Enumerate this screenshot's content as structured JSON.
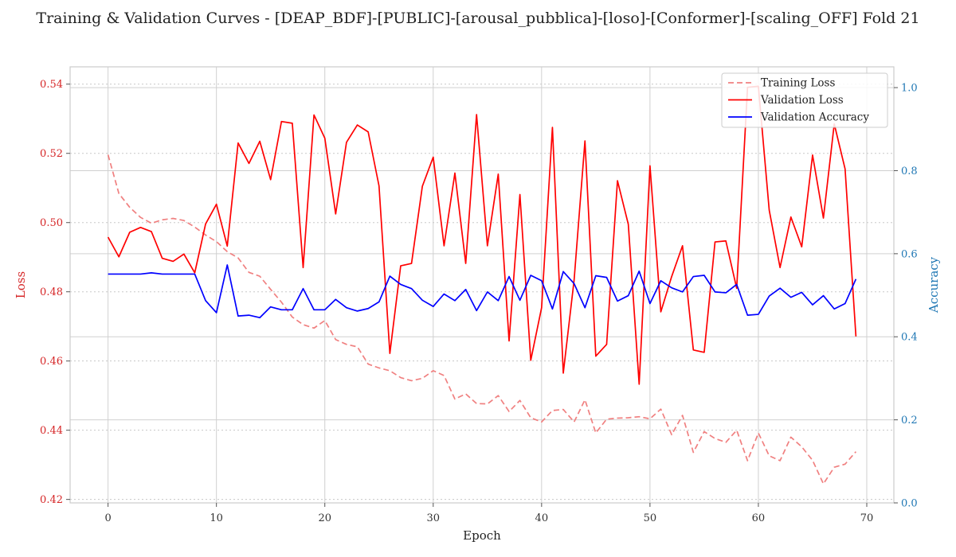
{
  "chart_data": {
    "type": "line",
    "title": "Training & Validation Curves - [DEAP_BDF]-[PUBLIC]-[arousal_pubblica]-[loso]-[Conformer]-[scaling_OFF] Fold 21",
    "xlabel": "Epoch",
    "ylabel_left": "Loss",
    "ylabel_right": "Accuracy",
    "xlim": [
      -3.5,
      72.5
    ],
    "ylim_left": [
      0.419,
      0.545
    ],
    "ylim_right": [
      0.0,
      1.05
    ],
    "xticks": [
      0,
      10,
      20,
      30,
      40,
      50,
      60,
      70
    ],
    "yticks_left": [
      0.42,
      0.44,
      0.46,
      0.48,
      0.5,
      0.52,
      0.54
    ],
    "yticks_right": [
      0.0,
      0.2,
      0.4,
      0.6,
      0.8,
      1.0
    ],
    "xtick_labels": [
      "0",
      "10",
      "20",
      "30",
      "40",
      "50",
      "60",
      "70"
    ],
    "ytick_labels_left": [
      "0.42",
      "0.44",
      "0.46",
      "0.48",
      "0.50",
      "0.52",
      "0.54"
    ],
    "ytick_labels_right": [
      "0.0",
      "0.2",
      "0.4",
      "0.6",
      "0.8",
      "1.0"
    ],
    "grid": true,
    "legend_position": "top-right",
    "colors": {
      "training_loss": "#f08080",
      "validation_loss": "#ff0000",
      "validation_accuracy": "#0000ff",
      "left_axis": "#d62728",
      "right_axis": "#1f77b4"
    },
    "x": [
      0,
      1,
      2,
      3,
      4,
      5,
      6,
      7,
      8,
      9,
      10,
      11,
      12,
      13,
      14,
      15,
      16,
      17,
      18,
      19,
      20,
      21,
      22,
      23,
      24,
      25,
      26,
      27,
      28,
      29,
      30,
      31,
      32,
      33,
      34,
      35,
      36,
      37,
      38,
      39,
      40,
      41,
      42,
      43,
      44,
      45,
      46,
      47,
      48,
      49,
      50,
      51,
      52,
      53,
      54,
      55,
      56,
      57,
      58,
      59,
      60,
      61,
      62,
      63,
      64,
      65,
      66,
      67,
      68,
      69
    ],
    "series": [
      {
        "name": "Training Loss",
        "axis": "left",
        "style": "dashed",
        "values": [
          0.5196,
          0.5084,
          0.5044,
          0.5015,
          0.4998,
          0.5008,
          0.5012,
          0.5006,
          0.4987,
          0.4964,
          0.4945,
          0.4916,
          0.4898,
          0.4856,
          0.4845,
          0.4807,
          0.477,
          0.4727,
          0.4705,
          0.4695,
          0.4717,
          0.4662,
          0.4648,
          0.4641,
          0.4591,
          0.458,
          0.4572,
          0.4552,
          0.4543,
          0.455,
          0.4572,
          0.4558,
          0.449,
          0.4505,
          0.4477,
          0.4476,
          0.45,
          0.4454,
          0.4486,
          0.4436,
          0.4424,
          0.4457,
          0.446,
          0.4424,
          0.4488,
          0.4392,
          0.4432,
          0.4435,
          0.4436,
          0.4439,
          0.4433,
          0.4461,
          0.4387,
          0.4443,
          0.4336,
          0.4396,
          0.4376,
          0.4365,
          0.44,
          0.4312,
          0.4392,
          0.4326,
          0.4312,
          0.438,
          0.4352,
          0.4313,
          0.4245,
          0.4293,
          0.4302,
          0.4338
        ]
      },
      {
        "name": "Validation Loss",
        "axis": "left",
        "style": "solid",
        "values": [
          0.4958,
          0.4901,
          0.4972,
          0.4986,
          0.4974,
          0.4897,
          0.4888,
          0.4909,
          0.4855,
          0.4996,
          0.5053,
          0.4932,
          0.523,
          0.5171,
          0.5235,
          0.5124,
          0.5292,
          0.5287,
          0.487,
          0.5311,
          0.5244,
          0.5025,
          0.5232,
          0.5282,
          0.5262,
          0.5106,
          0.4622,
          0.4875,
          0.4882,
          0.5105,
          0.5189,
          0.4933,
          0.5143,
          0.4882,
          0.5312,
          0.4933,
          0.514,
          0.4658,
          0.5081,
          0.4602,
          0.4754,
          0.5275,
          0.4565,
          0.4834,
          0.5236,
          0.4614,
          0.4648,
          0.5121,
          0.4995,
          0.4533,
          0.5164,
          0.4742,
          0.4844,
          0.4933,
          0.4632,
          0.4625,
          0.4944,
          0.4947,
          0.481,
          0.5391,
          0.5394,
          0.5036,
          0.487,
          0.5016,
          0.493,
          0.5195,
          0.5013,
          0.5285,
          0.5155,
          0.4671
        ]
      },
      {
        "name": "Validation Accuracy",
        "axis": "right",
        "style": "solid",
        "values": [
          0.551,
          0.551,
          0.551,
          0.551,
          0.554,
          0.551,
          0.551,
          0.551,
          0.551,
          0.487,
          0.458,
          0.573,
          0.45,
          0.452,
          0.446,
          0.472,
          0.465,
          0.465,
          0.516,
          0.465,
          0.465,
          0.49,
          0.47,
          0.462,
          0.468,
          0.484,
          0.546,
          0.526,
          0.516,
          0.488,
          0.473,
          0.503,
          0.487,
          0.514,
          0.463,
          0.508,
          0.487,
          0.545,
          0.488,
          0.548,
          0.535,
          0.467,
          0.557,
          0.528,
          0.47,
          0.547,
          0.543,
          0.486,
          0.499,
          0.558,
          0.48,
          0.535,
          0.518,
          0.508,
          0.545,
          0.548,
          0.508,
          0.506,
          0.526,
          0.452,
          0.454,
          0.498,
          0.517,
          0.495,
          0.507,
          0.477,
          0.499,
          0.467,
          0.48,
          0.539
        ]
      }
    ]
  }
}
